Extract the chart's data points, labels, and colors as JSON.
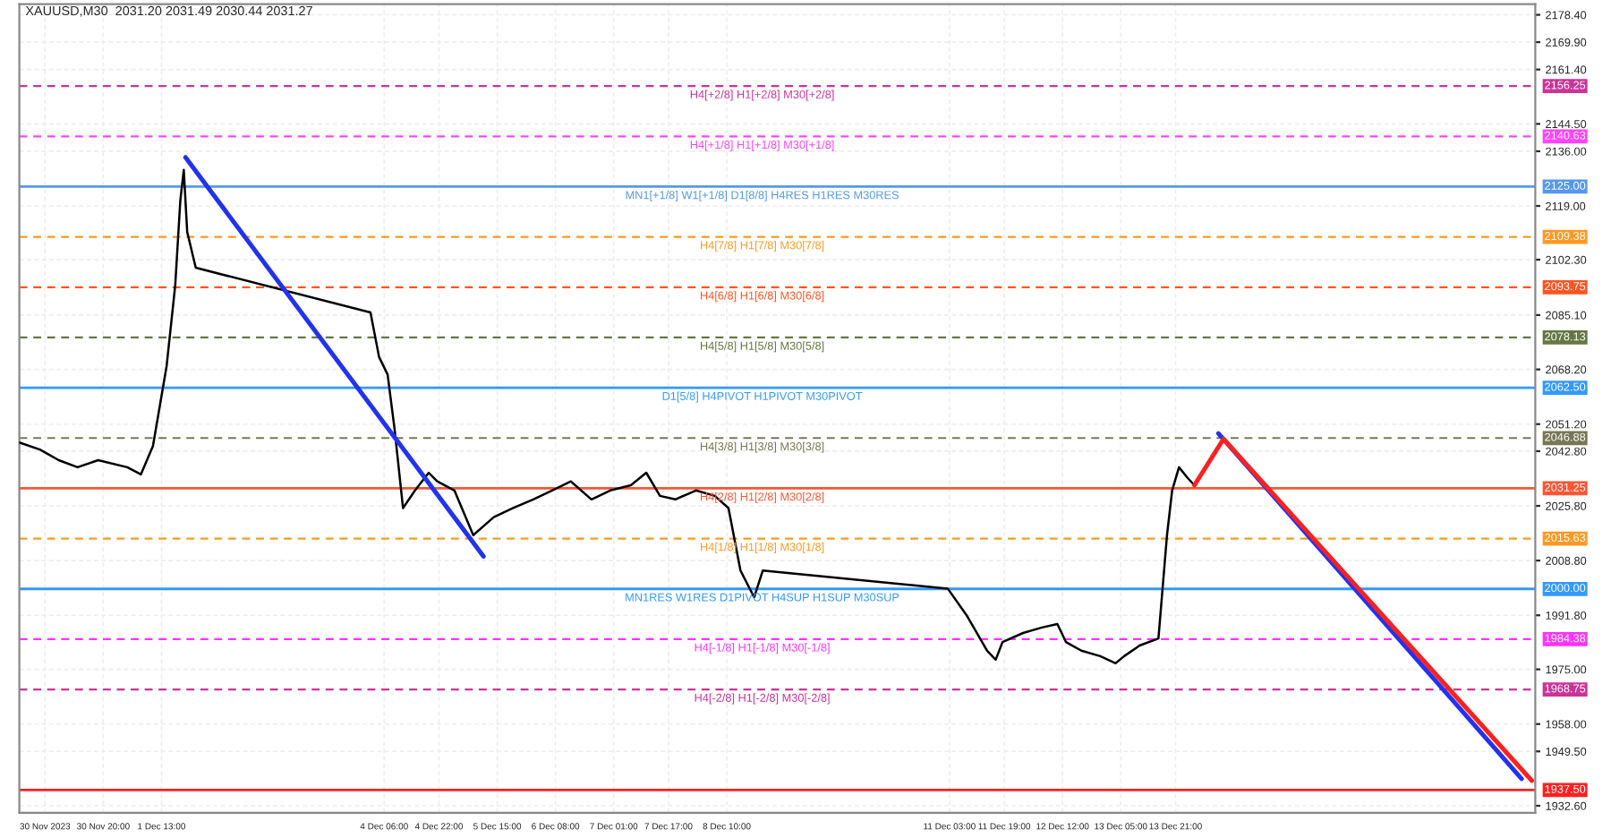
{
  "chart_data": {
    "type": "line",
    "title": "XAUUSD,M30  2031.20 2031.49 2030.44 2031.27",
    "series": [
      {
        "color": "#000000",
        "x": [
          "2023-11-29T19:30",
          "2023-11-30T01:30",
          "2023-11-30T07:00",
          "2023-11-30T12:30",
          "2023-11-30T18:30",
          "2023-12-01T03:00",
          "2023-12-01T07:00",
          "2023-12-01T10:30",
          "2023-12-01T14:30",
          "2023-12-01T17:00",
          "2023-12-01T18:30",
          "2023-12-01T19:30",
          "2023-12-01T20:30",
          "2023-12-01T23:00",
          "2023-12-04T02:00",
          "2023-12-04T04:30",
          "2023-12-04T07:00",
          "2023-12-04T09:00",
          "2023-12-04T11:30",
          "2023-12-04T15:00",
          "2023-12-04T19:00",
          "2023-12-04T21:30",
          "2023-12-05T02:30",
          "2023-12-05T08:00",
          "2023-12-05T11:00",
          "2023-12-05T14:00",
          "2023-12-05T19:30",
          "2023-12-06T01:30",
          "2023-12-06T07:00",
          "2023-12-06T12:30",
          "2023-12-06T18:30",
          "2023-12-07T00:00",
          "2023-12-07T06:00",
          "2023-12-07T10:30",
          "2023-12-07T14:30",
          "2023-12-07T19:00",
          "2023-12-08T01:00",
          "2023-12-08T06:30",
          "2023-12-08T10:30",
          "2023-12-08T14:00",
          "2023-12-08T18:00",
          "2023-12-08T20:30",
          "2023-12-11T02:30",
          "2023-12-11T08:00",
          "2023-12-11T14:00",
          "2023-12-11T16:30",
          "2023-12-11T18:30",
          "2023-12-12T00:30",
          "2023-12-12T06:00",
          "2023-12-12T10:30",
          "2023-12-12T13:00",
          "2023-12-12T17:30",
          "2023-12-12T23:00",
          "2023-12-13T03:30",
          "2023-12-13T06:00",
          "2023-12-13T10:30",
          "2023-12-13T16:00",
          "2023-12-13T18:30",
          "2023-12-13T20:00",
          "2023-12-13T22:00",
          "2023-12-14T00:30",
          "2023-12-14T02:30"
        ],
        "values": [
          2045.5,
          2043.3,
          2040.0,
          2037.8,
          2040.0,
          2037.8,
          2035.6,
          2044.4,
          2069.3,
          2094.3,
          2120.8,
          2130.2,
          2110.9,
          2099.8,
          2085.9,
          2072.1,
          2066.6,
          2050.0,
          2025.1,
          2030.6,
          2036.1,
          2033.4,
          2030.6,
          2016.7,
          2019.5,
          2022.3,
          2025.1,
          2027.8,
          2030.6,
          2033.4,
          2027.8,
          2030.6,
          2032.2,
          2036.1,
          2028.9,
          2027.8,
          2030.6,
          2028.9,
          2025.1,
          2005.7,
          1997.4,
          2005.7,
          2000.1,
          1991.8,
          1980.8,
          1978.0,
          1983.5,
          1986.3,
          1988.0,
          1989.1,
          1983.5,
          1980.8,
          1979.1,
          1976.9,
          1979.1,
          1982.4,
          1984.6,
          2016.7,
          2030.6,
          2037.8,
          2034.5,
          2032.2
        ]
      },
      {
        "color": "#2233ee",
        "x": [
          "2023-12-01T20:00",
          "2023-12-05T11:00"
        ],
        "values": [
          2134.1,
          2010.1
        ]
      },
      {
        "color": "#2233ee",
        "x": [
          "2023-12-14T09:30",
          "2023-12-18T02:00"
        ],
        "values": [
          2048.3,
          1941.0
        ]
      },
      {
        "color": "#ff2020",
        "x": [
          "2023-12-14T02:30",
          "2023-12-14T11:00",
          "2023-12-18T05:00"
        ],
        "values": [
          2032.2,
          2046.6,
          1940.4
        ]
      }
    ],
    "ref_lines": [
      {
        "axis": "y",
        "value": 2156.25,
        "label": "H4[+2/8] H1[+2/8] M30[+2/8]",
        "color": "#cc3399",
        "line_style": "dashed"
      },
      {
        "axis": "y",
        "value": 2140.63,
        "label": "H4[+1/8] H1[+1/8] M30[+1/8]",
        "color": "#ff44ff",
        "line_style": "dashed"
      },
      {
        "axis": "y",
        "value": 2125.0,
        "label": "MN1[+1/8] W1[+1/8] D1[8/8] H4RES H1RES M30RES",
        "color": "#5599ee",
        "line_style": "solid"
      },
      {
        "axis": "y",
        "value": 2109.38,
        "label": "H4[7/8] H1[7/8] M30[7/8]",
        "color": "#ff9922",
        "line_style": "dashed"
      },
      {
        "axis": "y",
        "value": 2093.75,
        "label": "H4[6/8] H1[6/8] M30[6/8]",
        "color": "#ff5522",
        "line_style": "dashed"
      },
      {
        "axis": "y",
        "value": 2078.13,
        "label": "H4[5/8] H1[5/8] M30[5/8]",
        "color": "#667744",
        "line_style": "dashed"
      },
      {
        "axis": "y",
        "value": 2062.5,
        "label": "D1[5/8] H4PIVOT H1PIVOT M30PIVOT",
        "color": "#3399ff",
        "line_style": "solid"
      },
      {
        "axis": "y",
        "value": 2046.88,
        "label": "H4[3/8] H1[3/8] M30[3/8]",
        "color": "#777755",
        "line_style": "dashed"
      },
      {
        "axis": "y",
        "value": 2031.25,
        "label": "H4[2/8] H1[2/8] M30[2/8]",
        "color": "#ff5533",
        "line_style": "solid"
      },
      {
        "axis": "y",
        "value": 2015.63,
        "label": "H4[1/8] H1[1/8] M30[1/8]",
        "color": "#ff9922",
        "line_style": "dashed"
      },
      {
        "axis": "y",
        "value": 2000.0,
        "label": "MN1RES W1RES D1PIVOT H4SUP H1SUP M30SUP",
        "color": "#3399ff",
        "line_style": "solid"
      },
      {
        "axis": "y",
        "value": 1984.38,
        "label": "H4[-1/8] H1[-1/8] M30[-1/8]",
        "color": "#ff33ff",
        "line_style": "dashed"
      },
      {
        "axis": "y",
        "value": 1968.75,
        "label": "H4[-2/8] H1[-2/8] M30[-2/8]",
        "color": "#cc3399",
        "line_style": "dashed"
      },
      {
        "axis": "y",
        "value": 1937.5,
        "label": null,
        "color": "#ff2020",
        "line_style": "solid"
      }
    ],
    "xlim": [
      "2023-11-29T19:30",
      "2023-12-18T06:00"
    ],
    "xticks": [
      {
        "value": "2023-11-30T03:00",
        "label": "30 Nov 2023"
      },
      {
        "value": "2023-11-30T20:00",
        "label": "30 Nov 20:00"
      },
      {
        "value": "2023-12-01T13:00",
        "label": "1 Dec 13:00"
      },
      {
        "value": "2023-12-04T06:00",
        "label": "4 Dec 06:00"
      },
      {
        "value": "2023-12-04T22:00",
        "label": "4 Dec 22:00"
      },
      {
        "value": "2023-12-05T15:00",
        "label": "5 Dec 15:00"
      },
      {
        "value": "2023-12-06T08:00",
        "label": "6 Dec 08:00"
      },
      {
        "value": "2023-12-07T01:00",
        "label": "7 Dec 01:00"
      },
      {
        "value": "2023-12-07T17:00",
        "label": "7 Dec 17:00"
      },
      {
        "value": "2023-12-08T10:00",
        "label": "8 Dec 10:00"
      },
      {
        "value": "2023-12-11T03:00",
        "label": "11 Dec 03:00"
      },
      {
        "value": "2023-12-11T19:00",
        "label": "11 Dec 19:00"
      },
      {
        "value": "2023-12-12T12:00",
        "label": "12 Dec 12:00"
      },
      {
        "value": "2023-12-13T05:00",
        "label": "13 Dec 05:00"
      },
      {
        "value": "2023-12-13T21:00",
        "label": "13 Dec 21:00"
      }
    ],
    "ylim": [
      1930.4,
      2181.7
    ],
    "yticks": [
      {
        "value": 2178.4,
        "label": "2178.40"
      },
      {
        "value": 2169.9,
        "label": "2169.90"
      },
      {
        "value": 2161.4,
        "label": "2161.40"
      },
      {
        "value": 2144.5,
        "label": "2144.50"
      },
      {
        "value": 2136.0,
        "label": "2136.00"
      },
      {
        "value": 2119.0,
        "label": "2119.00"
      },
      {
        "value": 2102.3,
        "label": "2102.30"
      },
      {
        "value": 2085.1,
        "label": "2085.10"
      },
      {
        "value": 2068.2,
        "label": "2068.20"
      },
      {
        "value": 2051.2,
        "label": "2051.20"
      },
      {
        "value": 2042.8,
        "label": "2042.80"
      },
      {
        "value": 2025.8,
        "label": "2025.80"
      },
      {
        "value": 2008.8,
        "label": "2008.80"
      },
      {
        "value": 1991.8,
        "label": "1991.80"
      },
      {
        "value": 1975.0,
        "label": "1975.00"
      },
      {
        "value": 1958.0,
        "label": "1958.00"
      },
      {
        "value": 1949.5,
        "label": "1949.50"
      },
      {
        "value": 1932.6,
        "label": "1932.60"
      }
    ],
    "annotations": [
      "2156.25",
      "2140.63",
      "2125.00",
      "2109.38",
      "2093.75",
      "2078.13",
      "2062.50",
      "2046.88",
      "2031.25",
      "2015.63",
      "2000.00",
      "1984.38",
      "1968.75",
      "1937.50"
    ],
    "grid": true
  }
}
